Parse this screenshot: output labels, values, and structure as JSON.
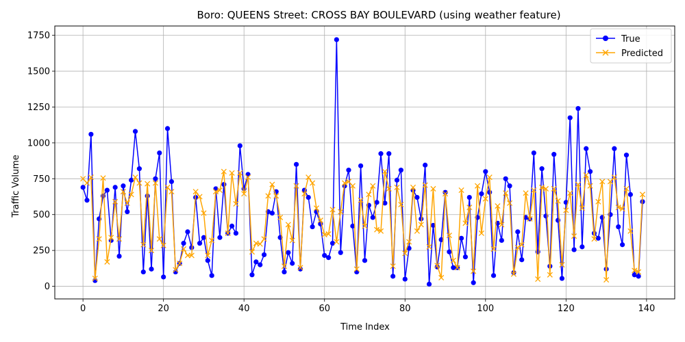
{
  "chart_data": {
    "type": "line",
    "title": "Boro: QUEENS Street: CROSS BAY BOULEVARD (using weather feature)",
    "xlabel": "Time Index",
    "ylabel": "Traffic Volume",
    "xlim": [
      -7,
      147
    ],
    "ylim": [
      -88,
      1815
    ],
    "x_ticks": [
      0,
      20,
      40,
      60,
      80,
      100,
      120,
      140
    ],
    "y_ticks": [
      0,
      250,
      500,
      750,
      1000,
      1250,
      1500,
      1750
    ],
    "grid": true,
    "legend_position": "top-right",
    "series": [
      {
        "name": "True",
        "color": "#0000ff",
        "marker": "circle",
        "values": [
          690,
          600,
          1060,
          40,
          470,
          630,
          670,
          320,
          690,
          210,
          700,
          520,
          740,
          1080,
          820,
          100,
          630,
          120,
          750,
          930,
          65,
          1100,
          730,
          100,
          160,
          300,
          380,
          270,
          620,
          300,
          340,
          180,
          75,
          680,
          340,
          710,
          370,
          420,
          370,
          980,
          680,
          780,
          80,
          170,
          150,
          220,
          520,
          510,
          660,
          340,
          100,
          235,
          160,
          850,
          120,
          670,
          620,
          415,
          520,
          435,
          215,
          200,
          300,
          1720,
          235,
          700,
          810,
          420,
          100,
          840,
          180,
          565,
          480,
          585,
          925,
          580,
          925,
          70,
          740,
          810,
          50,
          265,
          670,
          620,
          470,
          845,
          15,
          425,
          135,
          325,
          655,
          240,
          130,
          130,
          335,
          205,
          620,
          25,
          480,
          645,
          800,
          655,
          75,
          440,
          320,
          750,
          700,
          95,
          380,
          185,
          480,
          470,
          930,
          240,
          820,
          490,
          140,
          920,
          460,
          55,
          585,
          1175,
          255,
          1240,
          275,
          960,
          800,
          370,
          335,
          480,
          120,
          500,
          960,
          415,
          290,
          915,
          640,
          80,
          70,
          590
        ]
      },
      {
        "name": "Predicted",
        "color": "#ffa500",
        "marker": "x",
        "values": [
          750,
          720,
          760,
          55,
          330,
          755,
          170,
          340,
          590,
          330,
          660,
          580,
          640,
          760,
          720,
          290,
          715,
          250,
          720,
          330,
          285,
          690,
          660,
          115,
          160,
          260,
          215,
          215,
          660,
          625,
          510,
          215,
          320,
          660,
          670,
          800,
          370,
          790,
          575,
          790,
          645,
          760,
          240,
          300,
          295,
          330,
          630,
          710,
          630,
          480,
          140,
          430,
          320,
          700,
          130,
          645,
          760,
          720,
          545,
          460,
          360,
          365,
          535,
          310,
          520,
          720,
          730,
          700,
          120,
          600,
          420,
          640,
          700,
          395,
          385,
          800,
          680,
          140,
          690,
          570,
          230,
          310,
          690,
          385,
          430,
          705,
          275,
          680,
          145,
          60,
          645,
          355,
          180,
          130,
          670,
          440,
          550,
          105,
          700,
          370,
          610,
          760,
          260,
          560,
          430,
          650,
          580,
          85,
          270,
          290,
          650,
          470,
          670,
          50,
          690,
          680,
          80,
          680,
          595,
          150,
          530,
          650,
          350,
          710,
          545,
          775,
          700,
          330,
          590,
          730,
          45,
          730,
          760,
          550,
          540,
          680,
          385,
          110,
          100,
          640
        ]
      }
    ]
  }
}
